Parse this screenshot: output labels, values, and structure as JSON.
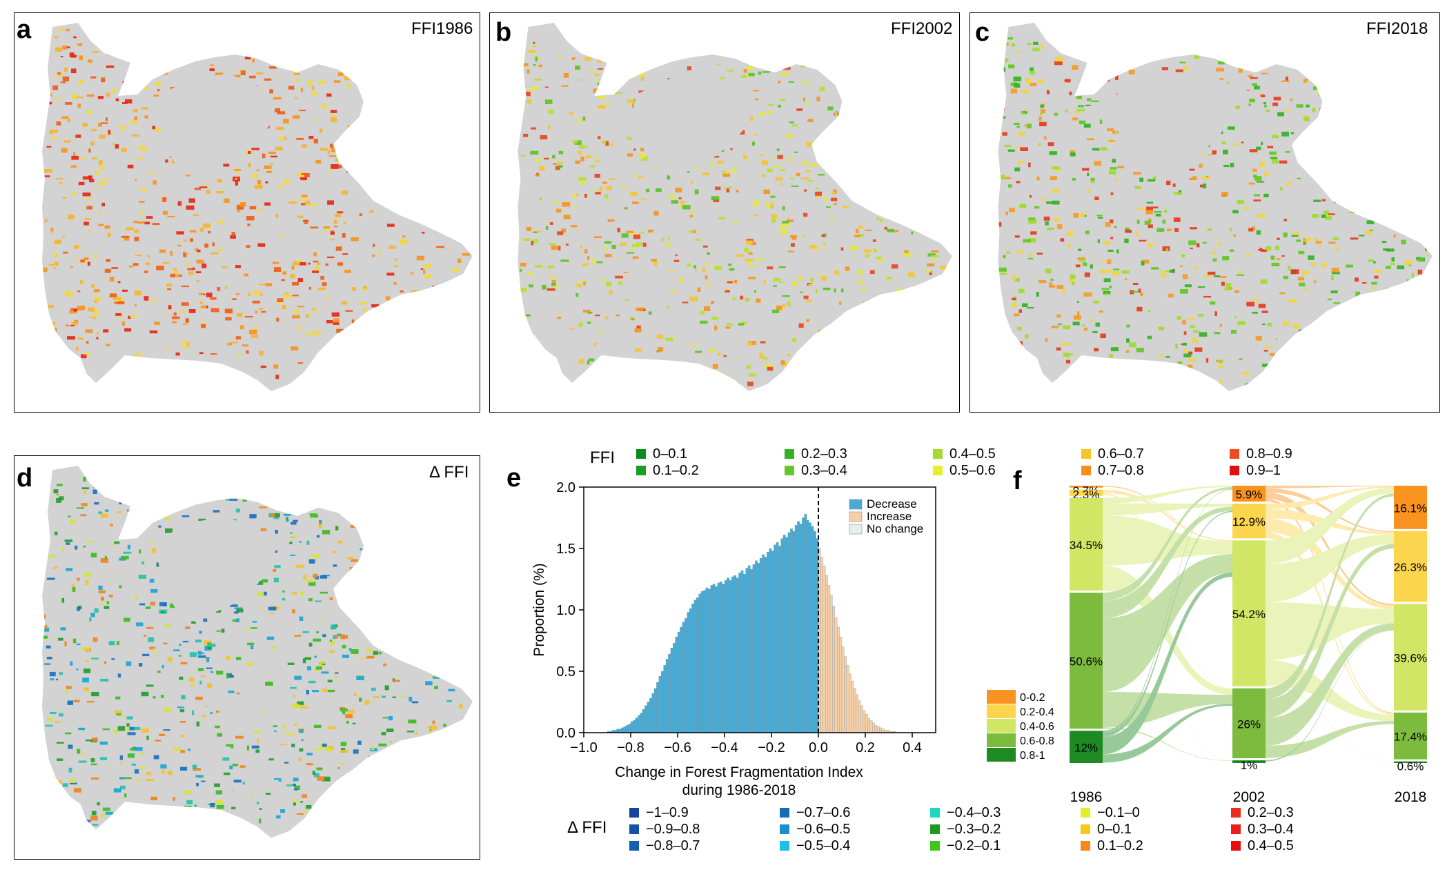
{
  "panels": {
    "a": {
      "letter": "a",
      "title": "FFI1986"
    },
    "b": {
      "letter": "b",
      "title": "FFI2002"
    },
    "c": {
      "letter": "c",
      "title": "FFI2018"
    },
    "d": {
      "letter": "d",
      "title": "Δ FFI"
    },
    "e": {
      "letter": "e"
    },
    "f": {
      "letter": "f"
    }
  },
  "map_palettes": {
    "a": [
      "#e8240f",
      "#f25a12",
      "#f7921c",
      "#f6b52a",
      "#f3d83a"
    ],
    "b": [
      "#f7921c",
      "#f6c431",
      "#e7e83a",
      "#b7e02c",
      "#56c31d",
      "#e8461a"
    ],
    "c": [
      "#2db21d",
      "#5dc81e",
      "#9fdc28",
      "#f1d53a",
      "#f59a20",
      "#e8371a"
    ],
    "d": [
      "#1aa3d6",
      "#1470c0",
      "#26c0a8",
      "#1f9d2a",
      "#3cbb1e",
      "#d7e23a",
      "#f4c12a",
      "#f0831c"
    ]
  },
  "ffi_legend": {
    "title": "FFI",
    "items": [
      {
        "label": "0–0.1",
        "color": "#0f8a1e"
      },
      {
        "label": "0.1–0.2",
        "color": "#1b9e22"
      },
      {
        "label": "0.2–0.3",
        "color": "#34b225"
      },
      {
        "label": "0.3–0.4",
        "color": "#66c528"
      },
      {
        "label": "0.4–0.5",
        "color": "#a8d932"
      },
      {
        "label": "0.5–0.6",
        "color": "#e8ef26"
      },
      {
        "label": "0.6–0.7",
        "color": "#f6c724"
      },
      {
        "label": "0.7–0.8",
        "color": "#f58d1b"
      },
      {
        "label": "0.8–0.9",
        "color": "#ef4a22"
      },
      {
        "label": "0.9–1",
        "color": "#e01010"
      }
    ]
  },
  "dffi_legend": {
    "title": "Δ FFI",
    "items": [
      {
        "label": "−1–0.9",
        "color": "#1446a0"
      },
      {
        "label": "−0.9–0.8",
        "color": "#1552a6"
      },
      {
        "label": "−0.8–0.7",
        "color": "#165eb0"
      },
      {
        "label": "−0.7–0.6",
        "color": "#186ab8"
      },
      {
        "label": "−0.6–0.5",
        "color": "#1a8fce"
      },
      {
        "label": "−0.5–0.4",
        "color": "#1ec0e6"
      },
      {
        "label": "−0.4–0.3",
        "color": "#1fd7c0"
      },
      {
        "label": "−0.3–0.2",
        "color": "#1f9a1f"
      },
      {
        "label": "−0.2–0.1",
        "color": "#3fc51c"
      },
      {
        "label": "−0.1–0",
        "color": "#e2ef26"
      },
      {
        "label": "0–0.1",
        "color": "#f8c81a"
      },
      {
        "label": "0.1–0.2",
        "color": "#f58a1a"
      },
      {
        "label": "0.2–0.3",
        "color": "#ef2a1e"
      },
      {
        "label": "0.3–0.4",
        "color": "#ee1a1a"
      },
      {
        "label": "0.4–0.5",
        "color": "#e80c0c"
      }
    ]
  },
  "chart_data": [
    {
      "type": "bar",
      "panel": "e",
      "xlabel": "Change in Forest Fragmentation Index",
      "xlabel2": "during 1986-2018",
      "ylabel": "Proportion (%)",
      "xlim": [
        -1.0,
        0.5
      ],
      "ylim": [
        0,
        2.0
      ],
      "xticks": [
        "−1.0",
        "−0.8",
        "−0.6",
        "−0.4",
        "−0.2",
        "0.0",
        "0.2",
        "0.4"
      ],
      "xtick_values": [
        -1.0,
        -0.8,
        -0.6,
        -0.4,
        -0.2,
        0.0,
        0.2,
        0.4
      ],
      "yticks": [
        "0.0",
        "0.5",
        "1.0",
        "1.5",
        "2.0"
      ],
      "ytick_values": [
        0,
        0.5,
        1.0,
        1.5,
        2.0
      ],
      "bin_width": 0.01,
      "legend": [
        {
          "label": "Decrease",
          "color": "#4aabd4"
        },
        {
          "label": "Increase",
          "color": "#f7d0a8"
        },
        {
          "label": "No change",
          "color": "#e3f0f0"
        }
      ],
      "legend_position": "top-right",
      "reference_line_x": 0.0,
      "series": [
        {
          "name": "Decrease",
          "color": "#4aabd4",
          "x_start": -0.9,
          "values": [
            0.01,
            0.01,
            0.02,
            0.02,
            0.03,
            0.03,
            0.04,
            0.05,
            0.06,
            0.07,
            0.09,
            0.1,
            0.12,
            0.14,
            0.16,
            0.19,
            0.22,
            0.25,
            0.28,
            0.32,
            0.36,
            0.41,
            0.46,
            0.5,
            0.55,
            0.6,
            0.64,
            0.69,
            0.73,
            0.78,
            0.82,
            0.86,
            0.9,
            0.93,
            0.98,
            1.01,
            1.05,
            1.08,
            1.1,
            1.13,
            1.15,
            1.16,
            1.18,
            1.17,
            1.2,
            1.21,
            1.19,
            1.22,
            1.23,
            1.21,
            1.24,
            1.26,
            1.24,
            1.27,
            1.28,
            1.26,
            1.3,
            1.32,
            1.29,
            1.34,
            1.36,
            1.33,
            1.37,
            1.4,
            1.38,
            1.42,
            1.45,
            1.43,
            1.47,
            1.5,
            1.48,
            1.53,
            1.55,
            1.52,
            1.58,
            1.61,
            1.59,
            1.63,
            1.66,
            1.64,
            1.69,
            1.72,
            1.7,
            1.75,
            1.78,
            1.73,
            1.71,
            1.68,
            1.64,
            1.58
          ]
        },
        {
          "name": "Increase",
          "color": "#f7d0a8",
          "x_start": 0.0,
          "values": [
            1.5,
            1.43,
            1.36,
            1.28,
            1.2,
            1.12,
            1.03,
            0.94,
            0.86,
            0.78,
            0.7,
            0.62,
            0.55,
            0.48,
            0.42,
            0.36,
            0.31,
            0.26,
            0.22,
            0.18,
            0.15,
            0.12,
            0.1,
            0.08,
            0.06,
            0.05,
            0.04,
            0.03,
            0.02,
            0.02,
            0.01,
            0.01,
            0.01
          ]
        }
      ]
    },
    {
      "type": "sankey",
      "panel": "f",
      "years": [
        "1986",
        "2002",
        "2018"
      ],
      "categories": [
        "0-0.2",
        "0.2-0.4",
        "0.4-0.6",
        "0.6-0.8",
        "0.8-1"
      ],
      "colors": [
        "#f7931e",
        "#fbd54e",
        "#d2e665",
        "#7dbb3f",
        "#1d8a22"
      ],
      "values": [
        [
          0.7,
          2.3,
          34.5,
          50.6,
          12.0
        ],
        [
          5.9,
          12.9,
          54.2,
          26.0,
          1.0
        ],
        [
          16.1,
          26.3,
          39.6,
          17.4,
          0.6
        ]
      ],
      "labels": [
        [
          "0.7%",
          "2.3%",
          "34.5%",
          "50.6%",
          "12%"
        ],
        [
          "5.9%",
          "12.9%",
          "54.2%",
          "26%",
          "1%"
        ],
        [
          "16.1%",
          "26.3%",
          "39.6%",
          "17.4%",
          "0.6%"
        ]
      ]
    }
  ]
}
